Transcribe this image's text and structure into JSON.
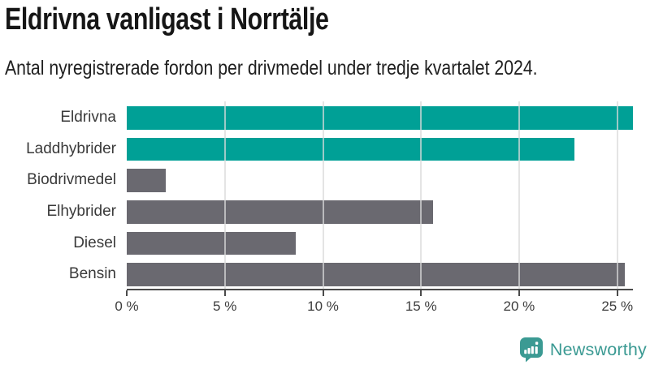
{
  "header": {
    "title": "Eldrivna vanligast i Norrtälje",
    "subtitle": "Antal nyregistrerade fordon per drivmedel under tredje kvartalet 2024."
  },
  "chart_data": {
    "type": "bar",
    "orientation": "horizontal",
    "title": "Eldrivna vanligast i Norrtälje",
    "subtitle": "Antal nyregistrerade fordon per drivmedel under tredje kvartalet 2024.",
    "categories": [
      "Eldrivna",
      "Laddhybrider",
      "Biodrivmedel",
      "Elhybrider",
      "Diesel",
      "Bensin"
    ],
    "values": [
      25.8,
      22.8,
      2.0,
      15.6,
      8.6,
      25.4
    ],
    "unit": "%",
    "bar_colors": [
      "#00a096",
      "#00a096",
      "#6a6970",
      "#6a6970",
      "#6a6970",
      "#6a6970"
    ],
    "xlabel": "",
    "ylabel": "",
    "xlim": [
      0,
      25.8
    ],
    "x_ticks": [
      0,
      5,
      10,
      15,
      20,
      25
    ],
    "x_tick_labels": [
      "0 %",
      "5 %",
      "10 %",
      "15 %",
      "20 %",
      "25 %"
    ],
    "grid": "vertical-on",
    "legend": "none"
  },
  "footer": {
    "brand": "Newsworthy"
  },
  "colors": {
    "highlight_teal": "#00a096",
    "muted_gray": "#6a6970",
    "brand_teal": "#3b9a93",
    "axis": "#4b4b4b",
    "gridline": "#d9d9d9",
    "title_text": "#161616",
    "label_text": "#3a3a3a"
  }
}
